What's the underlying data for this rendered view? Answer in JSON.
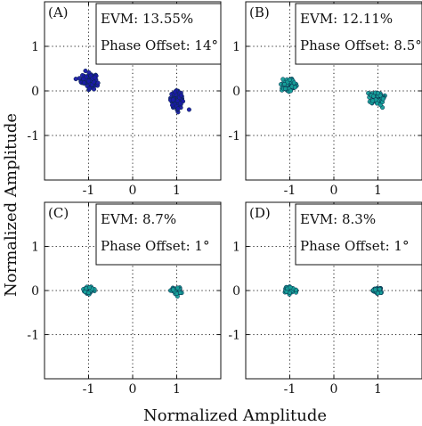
{
  "figure": {
    "xlabel": "Normalized Amplitude",
    "ylabel": "Normalized Amplitude"
  },
  "chart_data": [
    {
      "type": "scatter",
      "panel_label": "(A)",
      "annotation": [
        "EVM: 13.55%",
        "Phase Offset: 14°"
      ],
      "xlim": [
        -2,
        2
      ],
      "ylim": [
        -2,
        2
      ],
      "xticks": [
        -1,
        0,
        1
      ],
      "yticks": [
        -1,
        0,
        1
      ],
      "xtick_labels": [
        "-1",
        "0",
        "1"
      ],
      "ytick_labels": [
        "-1",
        "0",
        "1"
      ],
      "grid": true,
      "color": "#1a1aa6",
      "series": [
        {
          "center": [
            -1.0,
            0.24
          ],
          "spread": [
            0.11,
            0.1
          ],
          "points": [
            [
              -1.05,
              0.32
            ],
            [
              -0.97,
              0.23
            ],
            [
              -0.92,
              0.14
            ],
            [
              -1.12,
              0.27
            ],
            [
              -0.99,
              0.41
            ],
            [
              -0.88,
              0.2
            ],
            [
              -1.03,
              0.11
            ],
            [
              -0.95,
              0.34
            ],
            [
              -1.1,
              0.18
            ],
            [
              -0.91,
              0.28
            ],
            [
              -1.0,
              0.22
            ],
            [
              -1.14,
              0.35
            ],
            [
              -0.86,
              0.3
            ],
            [
              -0.98,
              0.05
            ],
            [
              -1.07,
              0.45
            ]
          ]
        },
        {
          "center": [
            1.0,
            -0.2
          ],
          "spread": [
            0.09,
            0.12
          ],
          "points": [
            [
              0.98,
              -0.08
            ],
            [
              1.02,
              -0.22
            ],
            [
              0.95,
              -0.3
            ],
            [
              1.06,
              -0.15
            ],
            [
              0.92,
              -0.2
            ],
            [
              1.0,
              -0.35
            ],
            [
              1.08,
              -0.28
            ],
            [
              0.96,
              -0.02
            ],
            [
              1.03,
              -0.4
            ],
            [
              1.1,
              -0.1
            ],
            [
              0.9,
              -0.32
            ],
            [
              1.28,
              -0.42
            ]
          ]
        }
      ]
    },
    {
      "type": "scatter",
      "panel_label": "(B)",
      "annotation": [
        "EVM: 12.11%",
        "Phase Offset: 8.5°"
      ],
      "xlim": [
        -2,
        2
      ],
      "ylim": [
        -2,
        2
      ],
      "xticks": [
        -1,
        0,
        1
      ],
      "yticks": [
        -1,
        0,
        1
      ],
      "xtick_labels": [
        "-1",
        "0",
        "1"
      ],
      "ytick_labels": [
        "-1",
        "0",
        "1"
      ],
      "grid": true,
      "color": "#16a09a",
      "series": [
        {
          "center": [
            -1.0,
            0.13
          ],
          "spread": [
            0.11,
            0.08
          ],
          "points": [
            [
              -1.05,
              0.2
            ],
            [
              -0.95,
              0.1
            ],
            [
              -1.1,
              0.05
            ],
            [
              -0.9,
              0.18
            ],
            [
              -1.0,
              0.25
            ],
            [
              -1.12,
              0.15
            ],
            [
              -0.88,
              0.08
            ],
            [
              -0.98,
              0.0
            ]
          ]
        },
        {
          "center": [
            1.0,
            -0.16
          ],
          "spread": [
            0.11,
            0.08
          ],
          "points": [
            [
              1.05,
              -0.1
            ],
            [
              0.95,
              -0.2
            ],
            [
              1.1,
              -0.25
            ],
            [
              0.9,
              -0.12
            ],
            [
              1.0,
              -0.05
            ],
            [
              1.12,
              -0.18
            ],
            [
              0.88,
              -0.22
            ],
            [
              0.98,
              -0.28
            ]
          ]
        }
      ]
    },
    {
      "type": "scatter",
      "panel_label": "(C)",
      "annotation": [
        "EVM: 8.7%",
        "Phase Offset: 1°"
      ],
      "xlim": [
        -2,
        2
      ],
      "ylim": [
        -2,
        2
      ],
      "xticks": [
        -1,
        0,
        1
      ],
      "yticks": [
        -1,
        0,
        1
      ],
      "xtick_labels": [
        "-1",
        "0",
        "1"
      ],
      "ytick_labels": [
        "-1",
        "0",
        "1"
      ],
      "grid": true,
      "color": "#16a09a",
      "series": [
        {
          "center": [
            -1.0,
            0.01
          ],
          "spread": [
            0.08,
            0.05
          ],
          "points": [
            [
              -1.05,
              0.05
            ],
            [
              -0.95,
              0.0
            ],
            [
              -1.08,
              -0.03
            ],
            [
              -0.92,
              0.04
            ],
            [
              -1.0,
              -0.05
            ],
            [
              -0.98,
              0.07
            ]
          ]
        },
        {
          "center": [
            1.0,
            -0.01
          ],
          "spread": [
            0.08,
            0.05
          ],
          "points": [
            [
              1.05,
              0.03
            ],
            [
              0.95,
              -0.02
            ],
            [
              1.08,
              -0.05
            ],
            [
              0.92,
              0.02
            ],
            [
              1.0,
              -0.07
            ],
            [
              1.02,
              0.06
            ]
          ]
        }
      ]
    },
    {
      "type": "scatter",
      "panel_label": "(D)",
      "annotation": [
        "EVM: 8.3%",
        "Phase Offset: 1°"
      ],
      "xlim": [
        -2,
        2
      ],
      "ylim": [
        -2,
        2
      ],
      "xticks": [
        -1,
        0,
        1
      ],
      "yticks": [
        -1,
        0,
        1
      ],
      "xtick_labels": [
        "-1",
        "0",
        "1"
      ],
      "ytick_labels": [
        "-1",
        "0",
        "1"
      ],
      "grid": true,
      "color": "#16a09a",
      "series": [
        {
          "center": [
            -1.0,
            0.01
          ],
          "spread": [
            0.08,
            0.05
          ],
          "points": [
            [
              -1.05,
              0.04
            ],
            [
              -0.95,
              0.0
            ],
            [
              -1.07,
              -0.03
            ],
            [
              -0.93,
              0.05
            ],
            [
              -1.0,
              -0.05
            ],
            [
              -0.99,
              0.07
            ]
          ]
        },
        {
          "center": [
            1.0,
            -0.01
          ],
          "spread": [
            0.07,
            0.05
          ],
          "points": [
            [
              1.04,
              0.03
            ],
            [
              0.96,
              -0.02
            ],
            [
              1.06,
              -0.05
            ],
            [
              0.94,
              0.02
            ],
            [
              1.0,
              -0.06
            ]
          ]
        }
      ]
    }
  ]
}
